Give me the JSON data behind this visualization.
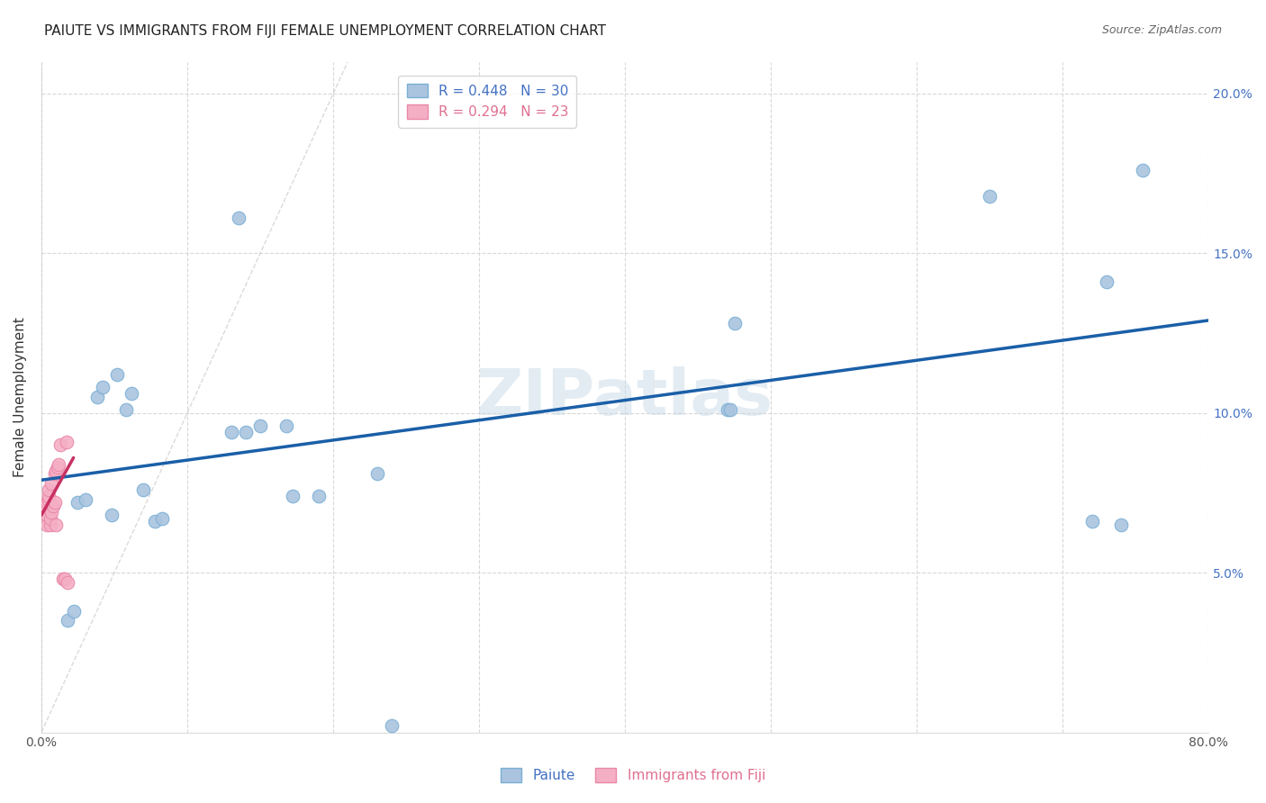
{
  "title": "PAIUTE VS IMMIGRANTS FROM FIJI FEMALE UNEMPLOYMENT CORRELATION CHART",
  "source": "Source: ZipAtlas.com",
  "ylabel": "Female Unemployment",
  "xlim": [
    0.0,
    0.8
  ],
  "ylim": [
    0.0,
    0.21
  ],
  "xticks": [
    0.0,
    0.1,
    0.2,
    0.3,
    0.4,
    0.5,
    0.6,
    0.7,
    0.8
  ],
  "xticklabels": [
    "0.0%",
    "",
    "",
    "",
    "",
    "",
    "",
    "",
    "80.0%"
  ],
  "yticks": [
    0.0,
    0.05,
    0.1,
    0.15,
    0.2
  ],
  "yticklabels_right": [
    "",
    "5.0%",
    "10.0%",
    "15.0%",
    "20.0%"
  ],
  "legend_paiute": "R = 0.448   N = 30",
  "legend_fiji": "R = 0.294   N = 23",
  "paiute_color": "#aac4df",
  "paiute_edge_color": "#7aafd4",
  "fiji_color": "#f5afc5",
  "fiji_edge_color": "#e888a8",
  "trend_blue_color": "#1a5fa8",
  "trend_pink_color": "#c83060",
  "diag_line_color": "#c8c0c0",
  "paiute_x": [
    0.018,
    0.022,
    0.025,
    0.03,
    0.038,
    0.042,
    0.048,
    0.052,
    0.058,
    0.062,
    0.07,
    0.078,
    0.083,
    0.13,
    0.135,
    0.14,
    0.15,
    0.168,
    0.172,
    0.19,
    0.23,
    0.24,
    0.47,
    0.472,
    0.475,
    0.65,
    0.72,
    0.73,
    0.74,
    0.755
  ],
  "paiute_y": [
    0.035,
    0.038,
    0.072,
    0.073,
    0.105,
    0.108,
    0.068,
    0.112,
    0.101,
    0.106,
    0.076,
    0.066,
    0.067,
    0.094,
    0.161,
    0.094,
    0.096,
    0.096,
    0.074,
    0.074,
    0.081,
    0.002,
    0.101,
    0.101,
    0.128,
    0.168,
    0.066,
    0.141,
    0.065,
    0.176
  ],
  "fiji_x": [
    0.003,
    0.004,
    0.004,
    0.004,
    0.005,
    0.005,
    0.005,
    0.006,
    0.006,
    0.007,
    0.007,
    0.008,
    0.009,
    0.009,
    0.01,
    0.01,
    0.011,
    0.012,
    0.013,
    0.015,
    0.016,
    0.017,
    0.018
  ],
  "fiji_y": [
    0.071,
    0.065,
    0.068,
    0.072,
    0.073,
    0.074,
    0.076,
    0.065,
    0.067,
    0.069,
    0.078,
    0.071,
    0.072,
    0.081,
    0.082,
    0.065,
    0.083,
    0.084,
    0.09,
    0.048,
    0.048,
    0.091,
    0.047
  ],
  "blue_trend_x0": 0.0,
  "blue_trend_x1": 0.8,
  "blue_trend_y0": 0.079,
  "blue_trend_y1": 0.129,
  "pink_trend_x0": 0.0,
  "pink_trend_x1": 0.022,
  "pink_trend_y0": 0.068,
  "pink_trend_y1": 0.086,
  "marker_size": 110,
  "background_color": "#ffffff",
  "grid_color": "#d8d8d8",
  "title_fontsize": 11,
  "axis_label_fontsize": 11,
  "tick_fontsize": 10,
  "legend_text_color_blue": "#4472c4",
  "legend_text_color_pink": "#e07090",
  "tick_color_blue": "#4472c4",
  "watermark_text": "ZIPatlas",
  "watermark_color": "#c8dae8",
  "bottom_label_paiute": "Paiute",
  "bottom_label_fiji": "Immigrants from Fiji"
}
